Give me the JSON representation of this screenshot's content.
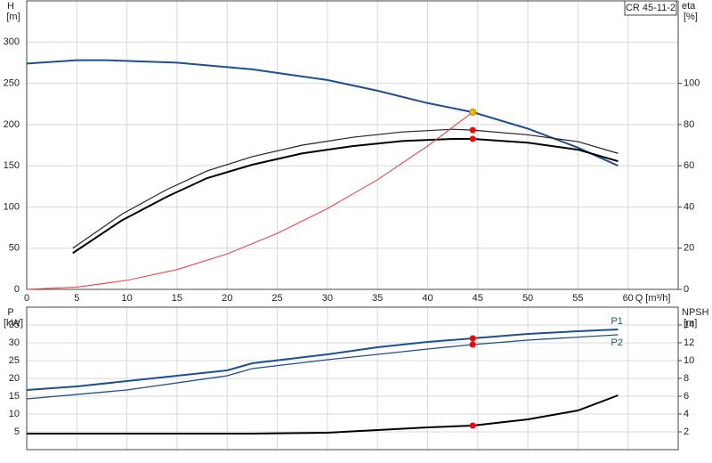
{
  "chart_data": [
    {
      "type": "line",
      "title": "CR 45-11-2",
      "ylabel": "H",
      "yunit": "[m]",
      "y2label": "eta",
      "y2unit": "[%]",
      "xlabel": "Q [m³/h]",
      "xlim": [
        0,
        65
      ],
      "xticks": [
        0,
        5,
        10,
        15,
        20,
        25,
        30,
        35,
        40,
        45,
        50,
        55,
        60
      ],
      "ylim": [
        0,
        350
      ],
      "yticks": [
        0,
        50,
        100,
        150,
        200,
        250,
        300
      ],
      "y2lim": [
        0,
        140
      ],
      "y2ticks": [
        0,
        20,
        40,
        60,
        80,
        100
      ],
      "grid": true,
      "series": [
        {
          "color": "#1d4f91",
          "width": 2,
          "x": [
            0,
            5,
            8,
            15,
            22.5,
            30,
            35,
            40,
            44.5,
            50,
            55,
            59
          ],
          "values": [
            274,
            278,
            278,
            275,
            267,
            254,
            241,
            226,
            215,
            195,
            172,
            150
          ]
        },
        {
          "color": "#222222",
          "width": 1.2,
          "axis": "y2",
          "x": [
            4.6,
            9.5,
            14,
            18,
            22.5,
            27.5,
            32.5,
            37.5,
            42.5,
            44.5,
            50,
            55,
            59
          ],
          "values": [
            20,
            36.5,
            48.5,
            57.5,
            64.4,
            70,
            73.8,
            76.4,
            77.7,
            77.3,
            75,
            71.7,
            66
          ]
        },
        {
          "color": "#000000",
          "width": 2,
          "axis": "y2",
          "x": [
            4.6,
            9.5,
            14,
            18,
            22.5,
            27.5,
            32.5,
            37.5,
            42.5,
            44.5,
            50,
            55,
            59
          ],
          "values": [
            17.6,
            33.5,
            45,
            54,
            60.5,
            66,
            69.5,
            72,
            73,
            73,
            71.2,
            67.8,
            62.2
          ]
        },
        {
          "color": "#ff3030",
          "width": 1,
          "x": [
            0,
            5,
            10,
            15,
            20,
            25,
            30,
            35,
            40,
            44.5
          ],
          "values": [
            0,
            2.7,
            11,
            24,
            43,
            68,
            98,
            133,
            174,
            215
          ]
        }
      ],
      "points": [
        {
          "x": 44.5,
          "y": 215,
          "color": "#f5b800"
        },
        {
          "x": 44.5,
          "y": 77.3,
          "axis": "y2",
          "color": "#ff0000"
        },
        {
          "x": 44.5,
          "y": 73,
          "axis": "y2",
          "color": "#ff0000"
        }
      ]
    },
    {
      "type": "line",
      "ylabel": "P",
      "yunit": "[kW]",
      "y2label": "NPSH",
      "y2unit": "[m]",
      "xlim": [
        0,
        65
      ],
      "xticks": [
        0,
        5,
        10,
        15,
        20,
        25,
        30,
        35,
        40,
        45,
        50,
        55,
        60
      ],
      "ylim": [
        0,
        40
      ],
      "yticks": [
        5,
        10,
        15,
        20,
        25,
        30,
        35
      ],
      "y2lim": [
        0,
        16
      ],
      "y2ticks": [
        2,
        4,
        6,
        8,
        10,
        12,
        14
      ],
      "grid": true,
      "series": [
        {
          "name": "P1",
          "color": "#1d4f91",
          "width": 2,
          "x": [
            0,
            5,
            10,
            15,
            20,
            22.5,
            30,
            35,
            40,
            44.5,
            50,
            55,
            59
          ],
          "values": [
            16.75,
            17.75,
            19.25,
            20.75,
            22.25,
            24.25,
            26.75,
            28.75,
            30.25,
            31.25,
            32.5,
            33.25,
            33.75
          ]
        },
        {
          "name": "P2",
          "color": "#1d4f91",
          "width": 1.3,
          "x": [
            0,
            10,
            20,
            22.5,
            30,
            40,
            44.5,
            50,
            59
          ],
          "values": [
            14.25,
            16.75,
            20.75,
            22.75,
            25.25,
            28.25,
            29.5,
            30.75,
            32.25
          ]
        },
        {
          "color": "#000000",
          "width": 2,
          "axis": "y2",
          "x": [
            0,
            22.5,
            30,
            35,
            40,
            44.5,
            50,
            55,
            59
          ],
          "values": [
            1.8,
            1.8,
            1.9,
            2.2,
            2.5,
            2.7,
            3.4,
            4.4,
            6.1
          ]
        }
      ],
      "points": [
        {
          "x": 44.5,
          "y": 31.25,
          "color": "#ff0000"
        },
        {
          "x": 44.5,
          "y": 29.5,
          "color": "#ff0000"
        },
        {
          "x": 44.5,
          "y": 2.7,
          "axis": "y2",
          "color": "#ff0000"
        }
      ]
    }
  ]
}
